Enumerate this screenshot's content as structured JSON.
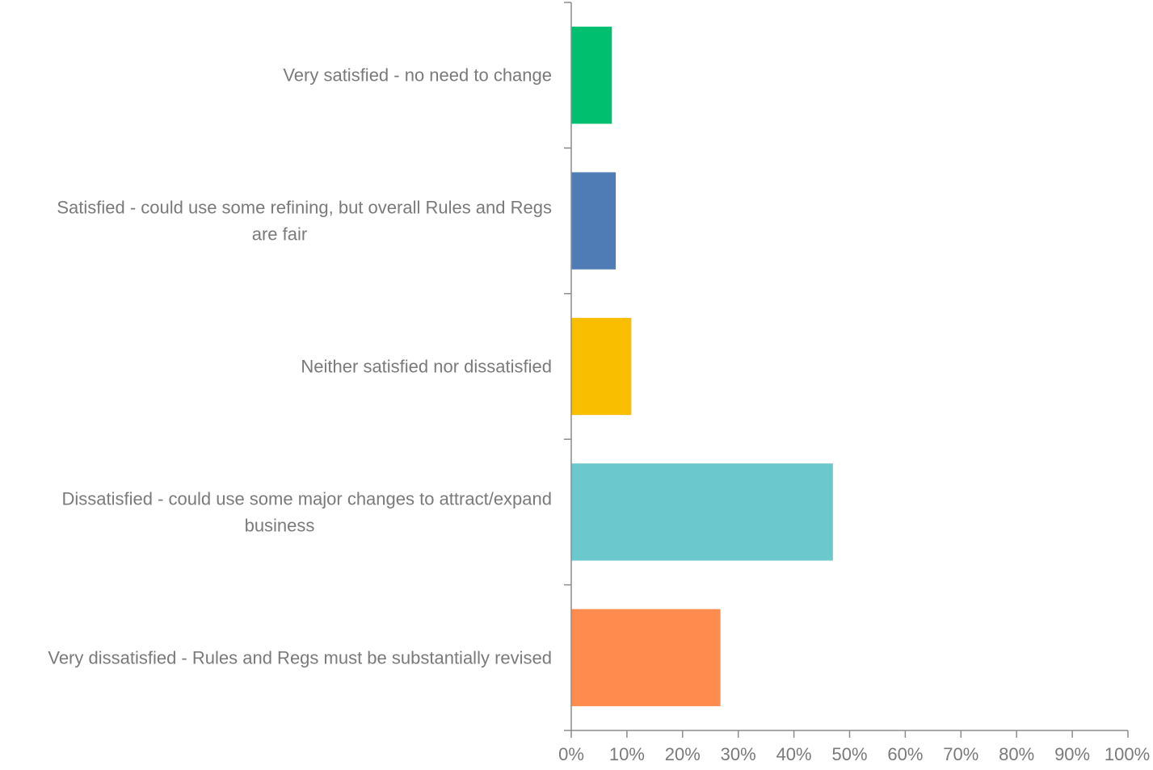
{
  "chart_data": {
    "type": "bar",
    "orientation": "horizontal",
    "title": "",
    "xlabel": "",
    "ylabel": "",
    "xlim": [
      0,
      100
    ],
    "x_unit": "%",
    "grid": false,
    "legend": "none",
    "categories": [
      [
        "Very satisfied - no need to change"
      ],
      [
        "Satisfied - could use some refining, but overall Rules and Regs",
        "are fair"
      ],
      [
        "Neither satisfied nor dissatisfied"
      ],
      [
        "Dissatisfied - could use some major changes to attract/expand",
        "business"
      ],
      [
        "Very dissatisfied - Rules and Regs must be substantially revised"
      ]
    ],
    "values": [
      7.3,
      8.0,
      10.8,
      47.0,
      26.8
    ],
    "colors": [
      "#00bf6f",
      "#507cb6",
      "#f9be00",
      "#6bc8cd",
      "#ff8b4f"
    ],
    "ticks": [
      "0%",
      "10%",
      "20%",
      "30%",
      "40%",
      "50%",
      "60%",
      "70%",
      "80%",
      "90%",
      "100%"
    ],
    "tick_values": [
      0,
      10,
      20,
      30,
      40,
      50,
      60,
      70,
      80,
      90,
      100
    ]
  }
}
